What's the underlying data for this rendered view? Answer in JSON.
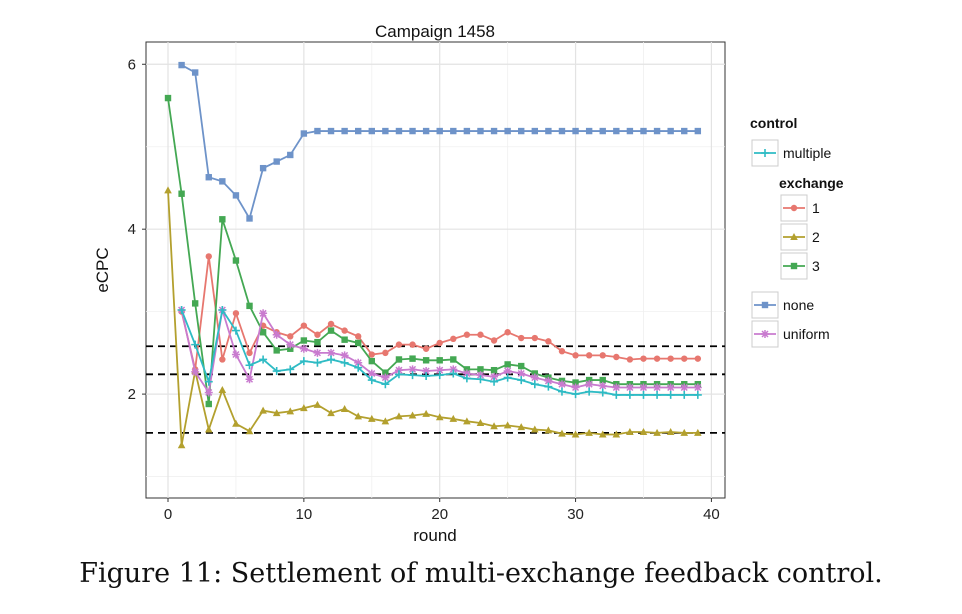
{
  "chart_data": {
    "type": "line",
    "title": "Campaign 1458",
    "xlabel": "round",
    "ylabel": "eCPC",
    "xlim": [
      -1.62,
      41.0
    ],
    "ylim": [
      0.74,
      6.27
    ],
    "xticks": [
      0,
      10,
      20,
      30,
      40
    ],
    "yticks": [
      2,
      4,
      6
    ],
    "grid": true,
    "legend_position": "right",
    "reference_lines": [
      2.58,
      2.24,
      1.53
    ],
    "legend": {
      "control_title": "control",
      "exchange_title": "exchange",
      "entries": [
        {
          "group": "control",
          "label": "multiple",
          "series": "multiple"
        },
        {
          "group": "exchange",
          "label": "1",
          "series": "exchange 1"
        },
        {
          "group": "exchange",
          "label": "2",
          "series": "exchange 2"
        },
        {
          "group": "exchange",
          "label": "3",
          "series": "exchange 3"
        },
        {
          "group": "control",
          "label": "none",
          "series": "none"
        },
        {
          "group": "control",
          "label": "uniform",
          "series": "uniform"
        }
      ]
    },
    "series": [
      {
        "name": "none",
        "color": "#6E93C9",
        "marker": "square",
        "x": [
          1,
          2,
          3,
          4,
          5,
          6,
          7,
          8,
          9,
          10,
          11,
          12,
          13,
          14,
          15,
          16,
          17,
          18,
          19,
          20,
          21,
          22,
          23,
          24,
          25,
          26,
          27,
          28,
          29,
          30,
          31,
          32,
          33,
          34,
          35,
          36,
          37,
          38,
          39
        ],
        "values": [
          5.99,
          5.9,
          4.63,
          4.58,
          4.41,
          4.13,
          4.74,
          4.82,
          4.9,
          5.16,
          5.19,
          5.19,
          5.19,
          5.19,
          5.19,
          5.19,
          5.19,
          5.19,
          5.19,
          5.19,
          5.19,
          5.19,
          5.19,
          5.19,
          5.19,
          5.19,
          5.19,
          5.19,
          5.19,
          5.19,
          5.19,
          5.19,
          5.19,
          5.19,
          5.19,
          5.19,
          5.19,
          5.19,
          5.19
        ]
      },
      {
        "name": "exchange 1",
        "color": "#E7776F",
        "marker": "circle",
        "x": [
          1,
          2,
          3,
          4,
          5,
          6,
          7,
          8,
          9,
          10,
          11,
          12,
          13,
          14,
          15,
          16,
          17,
          18,
          19,
          20,
          21,
          22,
          23,
          24,
          25,
          26,
          27,
          28,
          29,
          30,
          31,
          32,
          33,
          34,
          35,
          36,
          37,
          38,
          39
        ],
        "values": [
          3.0,
          2.3,
          3.67,
          2.42,
          2.98,
          2.5,
          2.83,
          2.75,
          2.7,
          2.83,
          2.72,
          2.85,
          2.77,
          2.7,
          2.48,
          2.5,
          2.6,
          2.6,
          2.55,
          2.62,
          2.67,
          2.72,
          2.72,
          2.65,
          2.75,
          2.68,
          2.68,
          2.64,
          2.52,
          2.47,
          2.47,
          2.47,
          2.45,
          2.42,
          2.43,
          2.43,
          2.43,
          2.43,
          2.43
        ]
      },
      {
        "name": "exchange 2",
        "color": "#B3A02E",
        "marker": "triangle",
        "x": [
          0,
          1,
          2,
          3,
          4,
          5,
          6,
          7,
          8,
          9,
          10,
          11,
          12,
          13,
          14,
          15,
          16,
          17,
          18,
          19,
          20,
          21,
          22,
          23,
          24,
          25,
          26,
          27,
          28,
          29,
          30,
          31,
          32,
          33,
          34,
          35,
          36,
          37,
          38,
          39
        ],
        "values": [
          4.47,
          1.38,
          2.28,
          1.57,
          2.05,
          1.64,
          1.55,
          1.8,
          1.77,
          1.79,
          1.83,
          1.87,
          1.77,
          1.82,
          1.73,
          1.7,
          1.67,
          1.73,
          1.74,
          1.76,
          1.72,
          1.7,
          1.67,
          1.65,
          1.61,
          1.62,
          1.6,
          1.57,
          1.56,
          1.52,
          1.51,
          1.53,
          1.51,
          1.51,
          1.54,
          1.54,
          1.53,
          1.54,
          1.53,
          1.53
        ]
      },
      {
        "name": "exchange 3",
        "color": "#44A853",
        "marker": "square",
        "x": [
          0,
          1,
          2,
          3,
          4,
          5,
          6,
          7,
          8,
          9,
          10,
          11,
          12,
          13,
          14,
          15,
          16,
          17,
          18,
          19,
          20,
          21,
          22,
          23,
          24,
          25,
          26,
          27,
          28,
          29,
          30,
          31,
          32,
          33,
          34,
          35,
          36,
          37,
          38,
          39
        ],
        "values": [
          5.59,
          4.43,
          3.1,
          1.88,
          4.12,
          3.62,
          3.07,
          2.75,
          2.53,
          2.55,
          2.65,
          2.63,
          2.77,
          2.66,
          2.62,
          2.4,
          2.26,
          2.42,
          2.43,
          2.41,
          2.41,
          2.42,
          2.3,
          2.3,
          2.29,
          2.36,
          2.34,
          2.25,
          2.2,
          2.16,
          2.14,
          2.17,
          2.17,
          2.12,
          2.12,
          2.12,
          2.12,
          2.12,
          2.12,
          2.12
        ]
      },
      {
        "name": "multiple",
        "color": "#2EBBC4",
        "marker": "plus",
        "x": [
          1,
          2,
          3,
          4,
          5,
          6,
          7,
          8,
          9,
          10,
          11,
          12,
          13,
          14,
          15,
          16,
          17,
          18,
          19,
          20,
          21,
          22,
          23,
          24,
          25,
          26,
          27,
          28,
          29,
          30,
          31,
          32,
          33,
          34,
          35,
          36,
          37,
          38,
          39
        ],
        "values": [
          3.02,
          2.6,
          2.15,
          3.02,
          2.77,
          2.35,
          2.42,
          2.28,
          2.3,
          2.4,
          2.38,
          2.42,
          2.38,
          2.32,
          2.17,
          2.12,
          2.24,
          2.23,
          2.22,
          2.23,
          2.25,
          2.19,
          2.18,
          2.15,
          2.2,
          2.17,
          2.12,
          2.09,
          2.03,
          2.0,
          2.03,
          2.02,
          1.99,
          1.99,
          1.99,
          1.99,
          1.99,
          1.99,
          1.99
        ]
      },
      {
        "name": "uniform",
        "color": "#C97BCF",
        "marker": "asterisk",
        "x": [
          1,
          2,
          3,
          4,
          5,
          6,
          7,
          8,
          9,
          10,
          11,
          12,
          13,
          14,
          15,
          16,
          17,
          18,
          19,
          20,
          21,
          22,
          23,
          24,
          25,
          26,
          27,
          28,
          29,
          30,
          31,
          32,
          33,
          34,
          35,
          36,
          37,
          38,
          39
        ],
        "values": [
          3.02,
          2.27,
          2.02,
          3.02,
          2.48,
          2.18,
          2.98,
          2.72,
          2.6,
          2.55,
          2.5,
          2.5,
          2.47,
          2.38,
          2.25,
          2.2,
          2.29,
          2.3,
          2.28,
          2.29,
          2.3,
          2.25,
          2.23,
          2.21,
          2.28,
          2.25,
          2.2,
          2.16,
          2.12,
          2.08,
          2.12,
          2.1,
          2.08,
          2.08,
          2.08,
          2.08,
          2.08,
          2.08,
          2.08
        ]
      }
    ]
  },
  "caption": "Figure 11: Settlement of multi-exchange feedback control."
}
